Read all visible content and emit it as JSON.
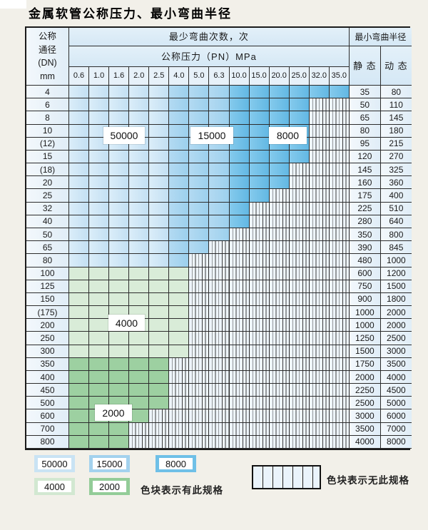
{
  "page": {
    "title": "金属软管公称压力、最小弯曲半径"
  },
  "table": {
    "corner": {
      "line1": "公称",
      "line2": "通径",
      "line3": "(DN)",
      "line4": "mm"
    },
    "cycles_header": "最少弯曲次数，次",
    "pressure_header": "公称压力（PN）MPa",
    "radius_header": "最小弯曲半径",
    "static_header": "静 态",
    "dynamic_header": "动 态",
    "pressures": [
      "0.6",
      "1.0",
      "1.6",
      "2.0",
      "2.5",
      "4.0",
      "5.0",
      "6.3",
      "10.0",
      "15.0",
      "20.0",
      "25.0",
      "32.0",
      "35.0"
    ],
    "rows": [
      {
        "dn": "4",
        "static": "35",
        "dynamic": "80",
        "palette": "blue",
        "colored_cols": 14
      },
      {
        "dn": "6",
        "static": "50",
        "dynamic": "110",
        "palette": "blue",
        "colored_cols": 12
      },
      {
        "dn": "8",
        "static": "65",
        "dynamic": "145",
        "palette": "blue",
        "colored_cols": 12
      },
      {
        "dn": "10",
        "static": "80",
        "dynamic": "180",
        "palette": "blue",
        "colored_cols": 12
      },
      {
        "dn": "(12)",
        "static": "95",
        "dynamic": "215",
        "palette": "blue",
        "colored_cols": 12
      },
      {
        "dn": "15",
        "static": "120",
        "dynamic": "270",
        "palette": "blue",
        "colored_cols": 12
      },
      {
        "dn": "(18)",
        "static": "145",
        "dynamic": "325",
        "palette": "blue",
        "colored_cols": 11
      },
      {
        "dn": "20",
        "static": "160",
        "dynamic": "360",
        "palette": "blue",
        "colored_cols": 11
      },
      {
        "dn": "25",
        "static": "175",
        "dynamic": "400",
        "palette": "blue",
        "colored_cols": 10
      },
      {
        "dn": "32",
        "static": "225",
        "dynamic": "510",
        "palette": "blue",
        "colored_cols": 9
      },
      {
        "dn": "40",
        "static": "280",
        "dynamic": "640",
        "palette": "blue",
        "colored_cols": 9
      },
      {
        "dn": "50",
        "static": "350",
        "dynamic": "800",
        "palette": "blue",
        "colored_cols": 8
      },
      {
        "dn": "65",
        "static": "390",
        "dynamic": "845",
        "palette": "blue",
        "colored_cols": 7
      },
      {
        "dn": "80",
        "static": "480",
        "dynamic": "1000",
        "palette": "blue",
        "colored_cols": 6
      },
      {
        "dn": "100",
        "static": "600",
        "dynamic": "1200",
        "palette": "green4",
        "colored_cols": 6
      },
      {
        "dn": "125",
        "static": "750",
        "dynamic": "1500",
        "palette": "green4",
        "colored_cols": 6
      },
      {
        "dn": "150",
        "static": "900",
        "dynamic": "1800",
        "palette": "green4",
        "colored_cols": 6
      },
      {
        "dn": "(175)",
        "static": "1000",
        "dynamic": "2000",
        "palette": "green4",
        "colored_cols": 6
      },
      {
        "dn": "200",
        "static": "1000",
        "dynamic": "2000",
        "palette": "green4",
        "colored_cols": 6
      },
      {
        "dn": "250",
        "static": "1250",
        "dynamic": "2500",
        "palette": "green4",
        "colored_cols": 6
      },
      {
        "dn": "300",
        "static": "1500",
        "dynamic": "3000",
        "palette": "green4",
        "colored_cols": 6
      },
      {
        "dn": "350",
        "static": "1750",
        "dynamic": "3500",
        "palette": "green2",
        "colored_cols": 5
      },
      {
        "dn": "400",
        "static": "2000",
        "dynamic": "4000",
        "palette": "green2",
        "colored_cols": 5
      },
      {
        "dn": "450",
        "static": "2250",
        "dynamic": "4500",
        "palette": "green2",
        "colored_cols": 5
      },
      {
        "dn": "500",
        "static": "2500",
        "dynamic": "5000",
        "palette": "green2",
        "colored_cols": 5
      },
      {
        "dn": "600",
        "static": "3000",
        "dynamic": "6000",
        "palette": "green2",
        "colored_cols": 4
      },
      {
        "dn": "700",
        "static": "3500",
        "dynamic": "7000",
        "palette": "green2",
        "colored_cols": 3
      },
      {
        "dn": "800",
        "static": "4000",
        "dynamic": "8000",
        "palette": "green2",
        "colored_cols": 3
      }
    ],
    "zone_by_blue_column": {
      "cols_1_5": "50000",
      "cols_6_8": "15000",
      "cols_9_14": "8000"
    }
  },
  "overlay_labels": {
    "l50000": "50000",
    "l15000": "15000",
    "l8000": "8000",
    "l4000": "4000",
    "l2000": "2000"
  },
  "legend": {
    "swatches": [
      {
        "label": "50000",
        "color": "#c9e3f4"
      },
      {
        "label": "15000",
        "color": "#a3d2ee"
      },
      {
        "label": "8000",
        "color": "#6fc0e7"
      },
      {
        "label": "4000",
        "color": "#d2e8d1"
      },
      {
        "label": "2000",
        "color": "#93cc98"
      }
    ],
    "has_spec_note": "色块表示有此规格",
    "no_spec_note": "色块表示无此规格"
  },
  "colors": {
    "cycles_50000": "#c9e3f4",
    "cycles_15000": "#a3d2ee",
    "cycles_8000": "#6fc0e7",
    "cycles_4000": "#d9ecd8",
    "cycles_2000": "#9dd0a1",
    "no_spec_bg": "#eef5fb",
    "grid_line": "#2c2c2c"
  }
}
